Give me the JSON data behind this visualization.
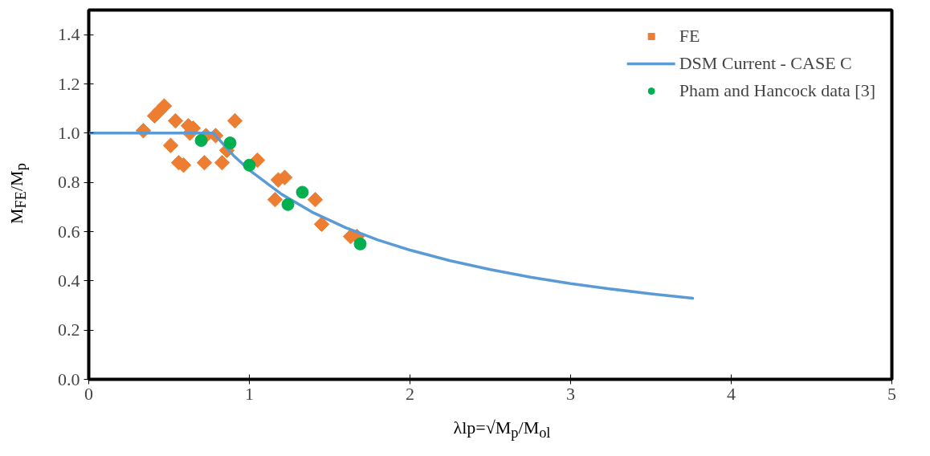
{
  "chart_data": {
    "type": "scatter",
    "xlabel": "λlp=√M$_{p}$/M$_{ol}$",
    "ylabel": "M$_{FE}$/M$_{p}$",
    "xlim": [
      0,
      5
    ],
    "xticks": [
      0,
      1,
      2,
      3,
      4,
      5
    ],
    "ylim": [
      0,
      1.5
    ],
    "yticks": [
      {
        "value": 0,
        "label": "0.0"
      },
      0.2,
      0.4,
      0.6,
      0.8,
      {
        "value": 1,
        "label": "1.0"
      },
      1.2,
      1.4
    ],
    "grid": false,
    "legend": "top right",
    "series": [
      {
        "name": "FE",
        "marker": "diamond",
        "color": "#ed7d31",
        "x": [
          0.34,
          0.41,
          0.44,
          0.47,
          0.54,
          0.62,
          0.65,
          0.63,
          0.51,
          0.56,
          0.59,
          0.72,
          0.73,
          0.79,
          0.83,
          0.86,
          0.91,
          1.05,
          1.16,
          1.18,
          1.22,
          1.41,
          1.45,
          1.63,
          1.67
        ],
        "values": [
          1.01,
          1.07,
          1.09,
          1.11,
          1.05,
          1.03,
          1.02,
          1.0,
          0.95,
          0.88,
          0.87,
          0.88,
          0.99,
          0.99,
          0.88,
          0.93,
          1.05,
          0.89,
          0.73,
          0.81,
          0.82,
          0.73,
          0.63,
          0.58,
          0.58
        ]
      },
      {
        "name": "DSM Current - CASE C",
        "type": "line",
        "marker": "none",
        "line_style": "solid",
        "color": "#5b9bd5",
        "x": [
          0,
          0.776,
          0.9,
          1,
          1.2,
          1.4,
          1.6,
          1.8,
          2,
          2.25,
          2.5,
          2.75,
          3,
          3.25,
          3.5,
          3.76
        ],
        "values": [
          1.0,
          1.0,
          0.91,
          0.85,
          0.752,
          0.676,
          0.616,
          0.566,
          0.525,
          0.482,
          0.446,
          0.415,
          0.389,
          0.367,
          0.347,
          0.329
        ]
      },
      {
        "name": "Pham and Hancock data [3]",
        "marker": "circle",
        "color": "#00b050",
        "x": [
          0.7,
          0.88,
          1.0,
          1.24,
          1.33,
          1.69
        ],
        "values": [
          0.97,
          0.96,
          0.87,
          0.71,
          0.76,
          0.55
        ]
      }
    ]
  }
}
